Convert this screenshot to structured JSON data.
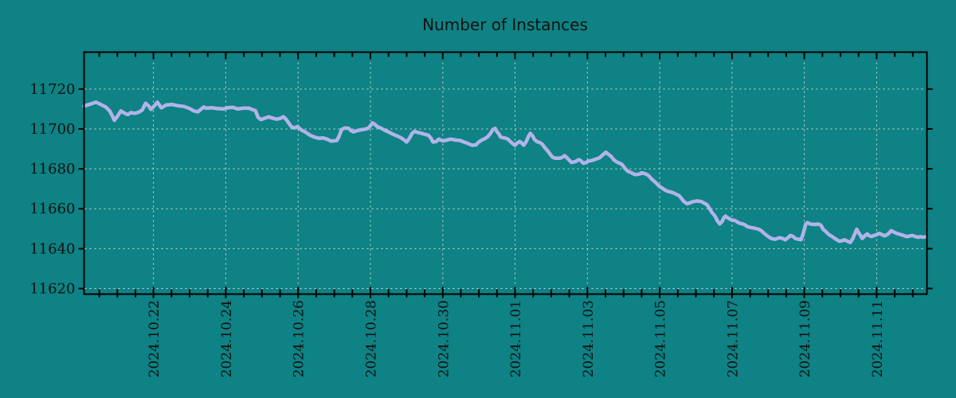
{
  "colors": {
    "background": "#0e8284",
    "line": "#b2b3e8",
    "grid": "#d9d9d9",
    "axis": "#000000",
    "text": "#111111"
  },
  "chart_data": {
    "type": "line",
    "title": "Number of Instances",
    "xlabel": "",
    "ylabel": "",
    "grid": true,
    "legend": "none",
    "x_axis": {
      "tick_labels": [
        "2024.10.22",
        "2024.10.24",
        "2024.10.26",
        "2024.10.28",
        "2024.10.30",
        "2024.11.01",
        "2024.11.03",
        "2024.11.05",
        "2024.11.07",
        "2024.11.09",
        "2024.11.11"
      ],
      "tick_positions_days": [
        0,
        2,
        4,
        6,
        8,
        10,
        12,
        14,
        16,
        18,
        20
      ],
      "day_zero_label": "2024.10.22",
      "minor_tick_step_days": 0.5,
      "range_days": [
        -1.92,
        21.39
      ]
    },
    "y_axis": {
      "ticks": [
        11620,
        11640,
        11660,
        11680,
        11700,
        11720
      ],
      "range": [
        11617.2,
        11738.5
      ]
    },
    "series": [
      {
        "name": "instances",
        "color": "#b2b3e8",
        "points_day_value": [
          [
            -1.92,
            11711.4
          ],
          [
            -1.78,
            11712.3
          ],
          [
            -1.59,
            11713.4
          ],
          [
            -1.43,
            11712.0
          ],
          [
            -1.32,
            11711.0
          ],
          [
            -1.21,
            11709.0
          ],
          [
            -1.15,
            11707.0
          ],
          [
            -1.08,
            11704.3
          ],
          [
            -0.99,
            11706.5
          ],
          [
            -0.9,
            11709.0
          ],
          [
            -0.79,
            11707.8
          ],
          [
            -0.71,
            11707.2
          ],
          [
            -0.62,
            11708.2
          ],
          [
            -0.53,
            11707.8
          ],
          [
            -0.42,
            11708.3
          ],
          [
            -0.31,
            11709.5
          ],
          [
            -0.22,
            11712.9
          ],
          [
            -0.13,
            11711.5
          ],
          [
            -0.07,
            11709.8
          ],
          [
            0.02,
            11711.5
          ],
          [
            0.11,
            11713.4
          ],
          [
            0.22,
            11710.6
          ],
          [
            0.35,
            11712.0
          ],
          [
            0.51,
            11712.3
          ],
          [
            0.66,
            11711.7
          ],
          [
            0.84,
            11711.3
          ],
          [
            0.99,
            11710.3
          ],
          [
            1.12,
            11709.0
          ],
          [
            1.23,
            11708.6
          ],
          [
            1.39,
            11711.0
          ],
          [
            1.45,
            11710.4
          ],
          [
            1.61,
            11710.6
          ],
          [
            1.78,
            11710.2
          ],
          [
            1.94,
            11710.0
          ],
          [
            2.05,
            11710.6
          ],
          [
            2.2,
            11710.8
          ],
          [
            2.33,
            11710.0
          ],
          [
            2.49,
            11710.4
          ],
          [
            2.64,
            11710.4
          ],
          [
            2.75,
            11709.6
          ],
          [
            2.82,
            11709.2
          ],
          [
            2.89,
            11705.9
          ],
          [
            2.97,
            11704.7
          ],
          [
            3.08,
            11705.4
          ],
          [
            3.19,
            11706.1
          ],
          [
            3.3,
            11705.4
          ],
          [
            3.41,
            11704.9
          ],
          [
            3.52,
            11705.4
          ],
          [
            3.59,
            11706.1
          ],
          [
            3.66,
            11705.0
          ],
          [
            3.74,
            11703.0
          ],
          [
            3.81,
            11701.2
          ],
          [
            3.88,
            11700.5
          ],
          [
            3.99,
            11701.2
          ],
          [
            4.03,
            11700.3
          ],
          [
            4.1,
            11699.4
          ],
          [
            4.21,
            11698.3
          ],
          [
            4.3,
            11697.2
          ],
          [
            4.36,
            11696.6
          ],
          [
            4.47,
            11695.8
          ],
          [
            4.58,
            11695.3
          ],
          [
            4.69,
            11695.5
          ],
          [
            4.8,
            11694.9
          ],
          [
            4.91,
            11693.9
          ],
          [
            5.07,
            11694.2
          ],
          [
            5.13,
            11696.2
          ],
          [
            5.2,
            11699.6
          ],
          [
            5.29,
            11700.5
          ],
          [
            5.4,
            11700.3
          ],
          [
            5.46,
            11699.2
          ],
          [
            5.53,
            11698.5
          ],
          [
            5.64,
            11699.2
          ],
          [
            5.75,
            11699.6
          ],
          [
            5.86,
            11699.9
          ],
          [
            5.95,
            11700.5
          ],
          [
            6.06,
            11703.0
          ],
          [
            6.12,
            11702.3
          ],
          [
            6.19,
            11701.2
          ],
          [
            6.3,
            11700.3
          ],
          [
            6.41,
            11699.2
          ],
          [
            6.52,
            11698.3
          ],
          [
            6.63,
            11697.3
          ],
          [
            6.74,
            11696.5
          ],
          [
            6.85,
            11695.5
          ],
          [
            6.94,
            11694.4
          ],
          [
            7.0,
            11693.4
          ],
          [
            7.07,
            11695.1
          ],
          [
            7.16,
            11697.9
          ],
          [
            7.22,
            11698.8
          ],
          [
            7.29,
            11698.3
          ],
          [
            7.4,
            11697.9
          ],
          [
            7.51,
            11697.3
          ],
          [
            7.6,
            11696.9
          ],
          [
            7.67,
            11695.5
          ],
          [
            7.73,
            11693.4
          ],
          [
            7.82,
            11693.7
          ],
          [
            7.89,
            11694.9
          ],
          [
            8.0,
            11694.0
          ],
          [
            8.11,
            11694.4
          ],
          [
            8.22,
            11694.9
          ],
          [
            8.37,
            11694.4
          ],
          [
            8.48,
            11694.2
          ],
          [
            8.59,
            11693.4
          ],
          [
            8.7,
            11692.7
          ],
          [
            8.81,
            11691.8
          ],
          [
            8.92,
            11692.0
          ],
          [
            8.99,
            11693.4
          ],
          [
            9.1,
            11694.6
          ],
          [
            9.16,
            11695.1
          ],
          [
            9.25,
            11696.2
          ],
          [
            9.32,
            11697.8
          ],
          [
            9.38,
            11699.6
          ],
          [
            9.45,
            11700.3
          ],
          [
            9.49,
            11698.9
          ],
          [
            9.56,
            11697.3
          ],
          [
            9.6,
            11695.9
          ],
          [
            9.71,
            11695.5
          ],
          [
            9.8,
            11694.9
          ],
          [
            9.87,
            11693.7
          ],
          [
            9.93,
            11692.7
          ],
          [
            10.0,
            11691.8
          ],
          [
            10.04,
            11692.7
          ],
          [
            10.13,
            11693.7
          ],
          [
            10.18,
            11693.0
          ],
          [
            10.24,
            11691.8
          ],
          [
            10.31,
            11693.7
          ],
          [
            10.37,
            11696.2
          ],
          [
            10.42,
            11697.8
          ],
          [
            10.49,
            11696.4
          ],
          [
            10.53,
            11694.9
          ],
          [
            10.6,
            11693.7
          ],
          [
            10.68,
            11693.2
          ],
          [
            10.75,
            11692.4
          ],
          [
            10.82,
            11690.7
          ],
          [
            10.9,
            11689.1
          ],
          [
            10.97,
            11687.3
          ],
          [
            11.04,
            11685.8
          ],
          [
            11.12,
            11685.3
          ],
          [
            11.23,
            11685.3
          ],
          [
            11.3,
            11685.7
          ],
          [
            11.37,
            11686.6
          ],
          [
            11.45,
            11685.3
          ],
          [
            11.56,
            11683.2
          ],
          [
            11.67,
            11683.6
          ],
          [
            11.76,
            11684.6
          ],
          [
            11.81,
            11684.2
          ],
          [
            11.89,
            11682.8
          ],
          [
            11.96,
            11683.2
          ],
          [
            12.03,
            11683.9
          ],
          [
            12.12,
            11684.2
          ],
          [
            12.18,
            11684.6
          ],
          [
            12.25,
            11685.0
          ],
          [
            12.34,
            11685.6
          ],
          [
            12.4,
            11686.6
          ],
          [
            12.47,
            11687.7
          ],
          [
            12.51,
            11688.3
          ],
          [
            12.58,
            11687.3
          ],
          [
            12.67,
            11686.0
          ],
          [
            12.73,
            11684.6
          ],
          [
            12.8,
            11683.6
          ],
          [
            12.89,
            11682.8
          ],
          [
            12.95,
            11682.3
          ],
          [
            13.0,
            11681.2
          ],
          [
            13.06,
            11679.8
          ],
          [
            13.13,
            11678.7
          ],
          [
            13.22,
            11678.0
          ],
          [
            13.28,
            11677.4
          ],
          [
            13.35,
            11677.1
          ],
          [
            13.44,
            11677.4
          ],
          [
            13.5,
            11678.0
          ],
          [
            13.57,
            11677.7
          ],
          [
            13.66,
            11677.1
          ],
          [
            13.72,
            11676.0
          ],
          [
            13.79,
            11674.7
          ],
          [
            13.88,
            11673.3
          ],
          [
            13.94,
            11672.1
          ],
          [
            14.01,
            11671.0
          ],
          [
            14.1,
            11670.0
          ],
          [
            14.16,
            11669.2
          ],
          [
            14.23,
            11668.7
          ],
          [
            14.32,
            11668.3
          ],
          [
            14.38,
            11667.9
          ],
          [
            14.45,
            11667.3
          ],
          [
            14.54,
            11666.5
          ],
          [
            14.6,
            11665.2
          ],
          [
            14.67,
            11663.6
          ],
          [
            14.76,
            11662.5
          ],
          [
            14.82,
            11662.9
          ],
          [
            14.93,
            11663.6
          ],
          [
            15.04,
            11663.9
          ],
          [
            15.15,
            11663.6
          ],
          [
            15.22,
            11662.9
          ],
          [
            15.31,
            11662.0
          ],
          [
            15.37,
            11660.3
          ],
          [
            15.44,
            11658.3
          ],
          [
            15.53,
            11656.3
          ],
          [
            15.6,
            11653.8
          ],
          [
            15.66,
            11652.4
          ],
          [
            15.73,
            11653.7
          ],
          [
            15.77,
            11655.4
          ],
          [
            15.82,
            11656.3
          ],
          [
            15.86,
            11655.7
          ],
          [
            15.93,
            11655.0
          ],
          [
            15.99,
            11654.3
          ],
          [
            16.08,
            11654.1
          ],
          [
            16.15,
            11653.3
          ],
          [
            16.21,
            11652.7
          ],
          [
            16.3,
            11652.4
          ],
          [
            16.37,
            11651.7
          ],
          [
            16.43,
            11651.0
          ],
          [
            16.52,
            11650.6
          ],
          [
            16.59,
            11650.4
          ],
          [
            16.65,
            11650.1
          ],
          [
            16.74,
            11649.7
          ],
          [
            16.81,
            11649.0
          ],
          [
            16.87,
            11648.0
          ],
          [
            16.96,
            11646.6
          ],
          [
            17.03,
            11645.7
          ],
          [
            17.09,
            11645.1
          ],
          [
            17.18,
            11644.7
          ],
          [
            17.25,
            11645.1
          ],
          [
            17.31,
            11645.5
          ],
          [
            17.4,
            11645.1
          ],
          [
            17.47,
            11644.4
          ],
          [
            17.53,
            11645.3
          ],
          [
            17.62,
            11646.6
          ],
          [
            17.69,
            11646.1
          ],
          [
            17.75,
            11645.1
          ],
          [
            17.84,
            11644.7
          ],
          [
            17.91,
            11644.5
          ],
          [
            17.97,
            11647.7
          ],
          [
            18.04,
            11652.3
          ],
          [
            18.08,
            11653.0
          ],
          [
            18.17,
            11652.3
          ],
          [
            18.28,
            11652.1
          ],
          [
            18.39,
            11652.3
          ],
          [
            18.46,
            11651.7
          ],
          [
            18.52,
            11649.7
          ],
          [
            18.61,
            11648.3
          ],
          [
            18.68,
            11647.0
          ],
          [
            18.74,
            11646.4
          ],
          [
            18.83,
            11645.3
          ],
          [
            18.9,
            11644.4
          ],
          [
            18.97,
            11643.7
          ],
          [
            19.05,
            11644.0
          ],
          [
            19.12,
            11644.4
          ],
          [
            19.19,
            11643.7
          ],
          [
            19.27,
            11643.1
          ],
          [
            19.34,
            11645.1
          ],
          [
            19.45,
            11649.7
          ],
          [
            19.49,
            11648.3
          ],
          [
            19.56,
            11646.4
          ],
          [
            19.6,
            11645.1
          ],
          [
            19.67,
            11646.4
          ],
          [
            19.74,
            11647.4
          ],
          [
            19.78,
            11646.6
          ],
          [
            19.85,
            11646.1
          ],
          [
            19.93,
            11646.6
          ],
          [
            20.0,
            11647.0
          ],
          [
            20.07,
            11647.7
          ],
          [
            20.15,
            11647.0
          ],
          [
            20.22,
            11646.4
          ],
          [
            20.29,
            11647.0
          ],
          [
            20.37,
            11648.3
          ],
          [
            20.4,
            11649.0
          ],
          [
            20.48,
            11648.3
          ],
          [
            20.55,
            11647.7
          ],
          [
            20.62,
            11647.3
          ],
          [
            20.71,
            11646.8
          ],
          [
            20.77,
            11646.4
          ],
          [
            20.84,
            11646.0
          ],
          [
            20.93,
            11646.4
          ],
          [
            20.99,
            11646.6
          ],
          [
            21.06,
            11646.1
          ],
          [
            21.15,
            11645.7
          ],
          [
            21.21,
            11646.0
          ],
          [
            21.28,
            11645.7
          ],
          [
            21.37,
            11646.0
          ]
        ]
      }
    ]
  }
}
